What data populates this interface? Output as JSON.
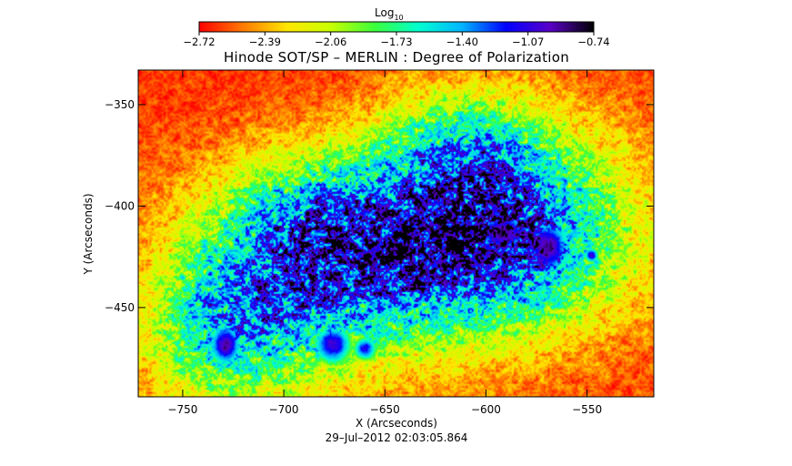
{
  "chart_data": {
    "type": "heatmap",
    "title": "Hinode SOT/SP – MERLIN : Degree of Polarization",
    "xlabel": "X (Arcseconds)",
    "ylabel": "Y (Arcseconds)",
    "timestamp": "29–Jul–2012 02:03:05.864",
    "colorbar": {
      "label": "Log",
      "label_subscript": "10",
      "min": -2.72,
      "max": -0.74,
      "ticks": [
        "−2.72",
        "−2.39",
        "−2.06",
        "−1.73",
        "−1.40",
        "−1.07",
        "−0.74"
      ],
      "tick_values": [
        -2.72,
        -2.39,
        -2.06,
        -1.73,
        -1.4,
        -1.07,
        -0.74
      ],
      "colormap": [
        "#ff0000",
        "#ff7a00",
        "#ffe600",
        "#c8ff00",
        "#3cff3c",
        "#00ffd0",
        "#00b4ff",
        "#0000ff",
        "#5a00c8",
        "#000000"
      ]
    },
    "xlim": [
      -772,
      -517
    ],
    "ylim": [
      -494,
      -333
    ],
    "xticks": [
      -750,
      -700,
      -650,
      -600,
      -550
    ],
    "xtick_labels": [
      "−750",
      "−700",
      "−650",
      "−600",
      "−550"
    ],
    "yticks": [
      -350,
      -400,
      -450
    ],
    "ytick_labels": [
      "−350",
      "−400",
      "−450"
    ],
    "features": [
      {
        "x": -592,
        "y": -413,
        "sx": 12,
        "sy": 9,
        "peak": -0.8
      },
      {
        "x": -570,
        "y": -420,
        "sx": 10,
        "sy": 12,
        "peak": -0.85
      },
      {
        "x": -610,
        "y": -410,
        "sx": 6,
        "sy": 5,
        "peak": -1.0
      },
      {
        "x": -548,
        "y": -424,
        "sx": 3,
        "sy": 3,
        "peak": -0.95
      },
      {
        "x": -729,
        "y": -468,
        "sx": 7,
        "sy": 9,
        "peak": -0.85
      },
      {
        "x": -676,
        "y": -468,
        "sx": 8,
        "sy": 8,
        "peak": -0.95
      },
      {
        "x": -660,
        "y": -470,
        "sx": 5,
        "sy": 5,
        "peak": -1.1
      }
    ],
    "active_region": [
      {
        "x": -590,
        "y": -410,
        "sx": 45,
        "sy": 35,
        "amp": 1.2
      },
      {
        "x": -650,
        "y": -425,
        "sx": 55,
        "sy": 30,
        "amp": 0.85
      },
      {
        "x": -700,
        "y": -445,
        "sx": 40,
        "sy": 35,
        "amp": 0.75
      },
      {
        "x": -735,
        "y": -465,
        "sx": 25,
        "sy": 25,
        "amp": 0.6
      },
      {
        "x": -615,
        "y": -370,
        "sx": 30,
        "sy": 20,
        "amp": 0.6
      },
      {
        "x": -690,
        "y": -400,
        "sx": 30,
        "sy": 20,
        "amp": 0.45
      }
    ],
    "background_level": -2.62,
    "grid": false
  }
}
